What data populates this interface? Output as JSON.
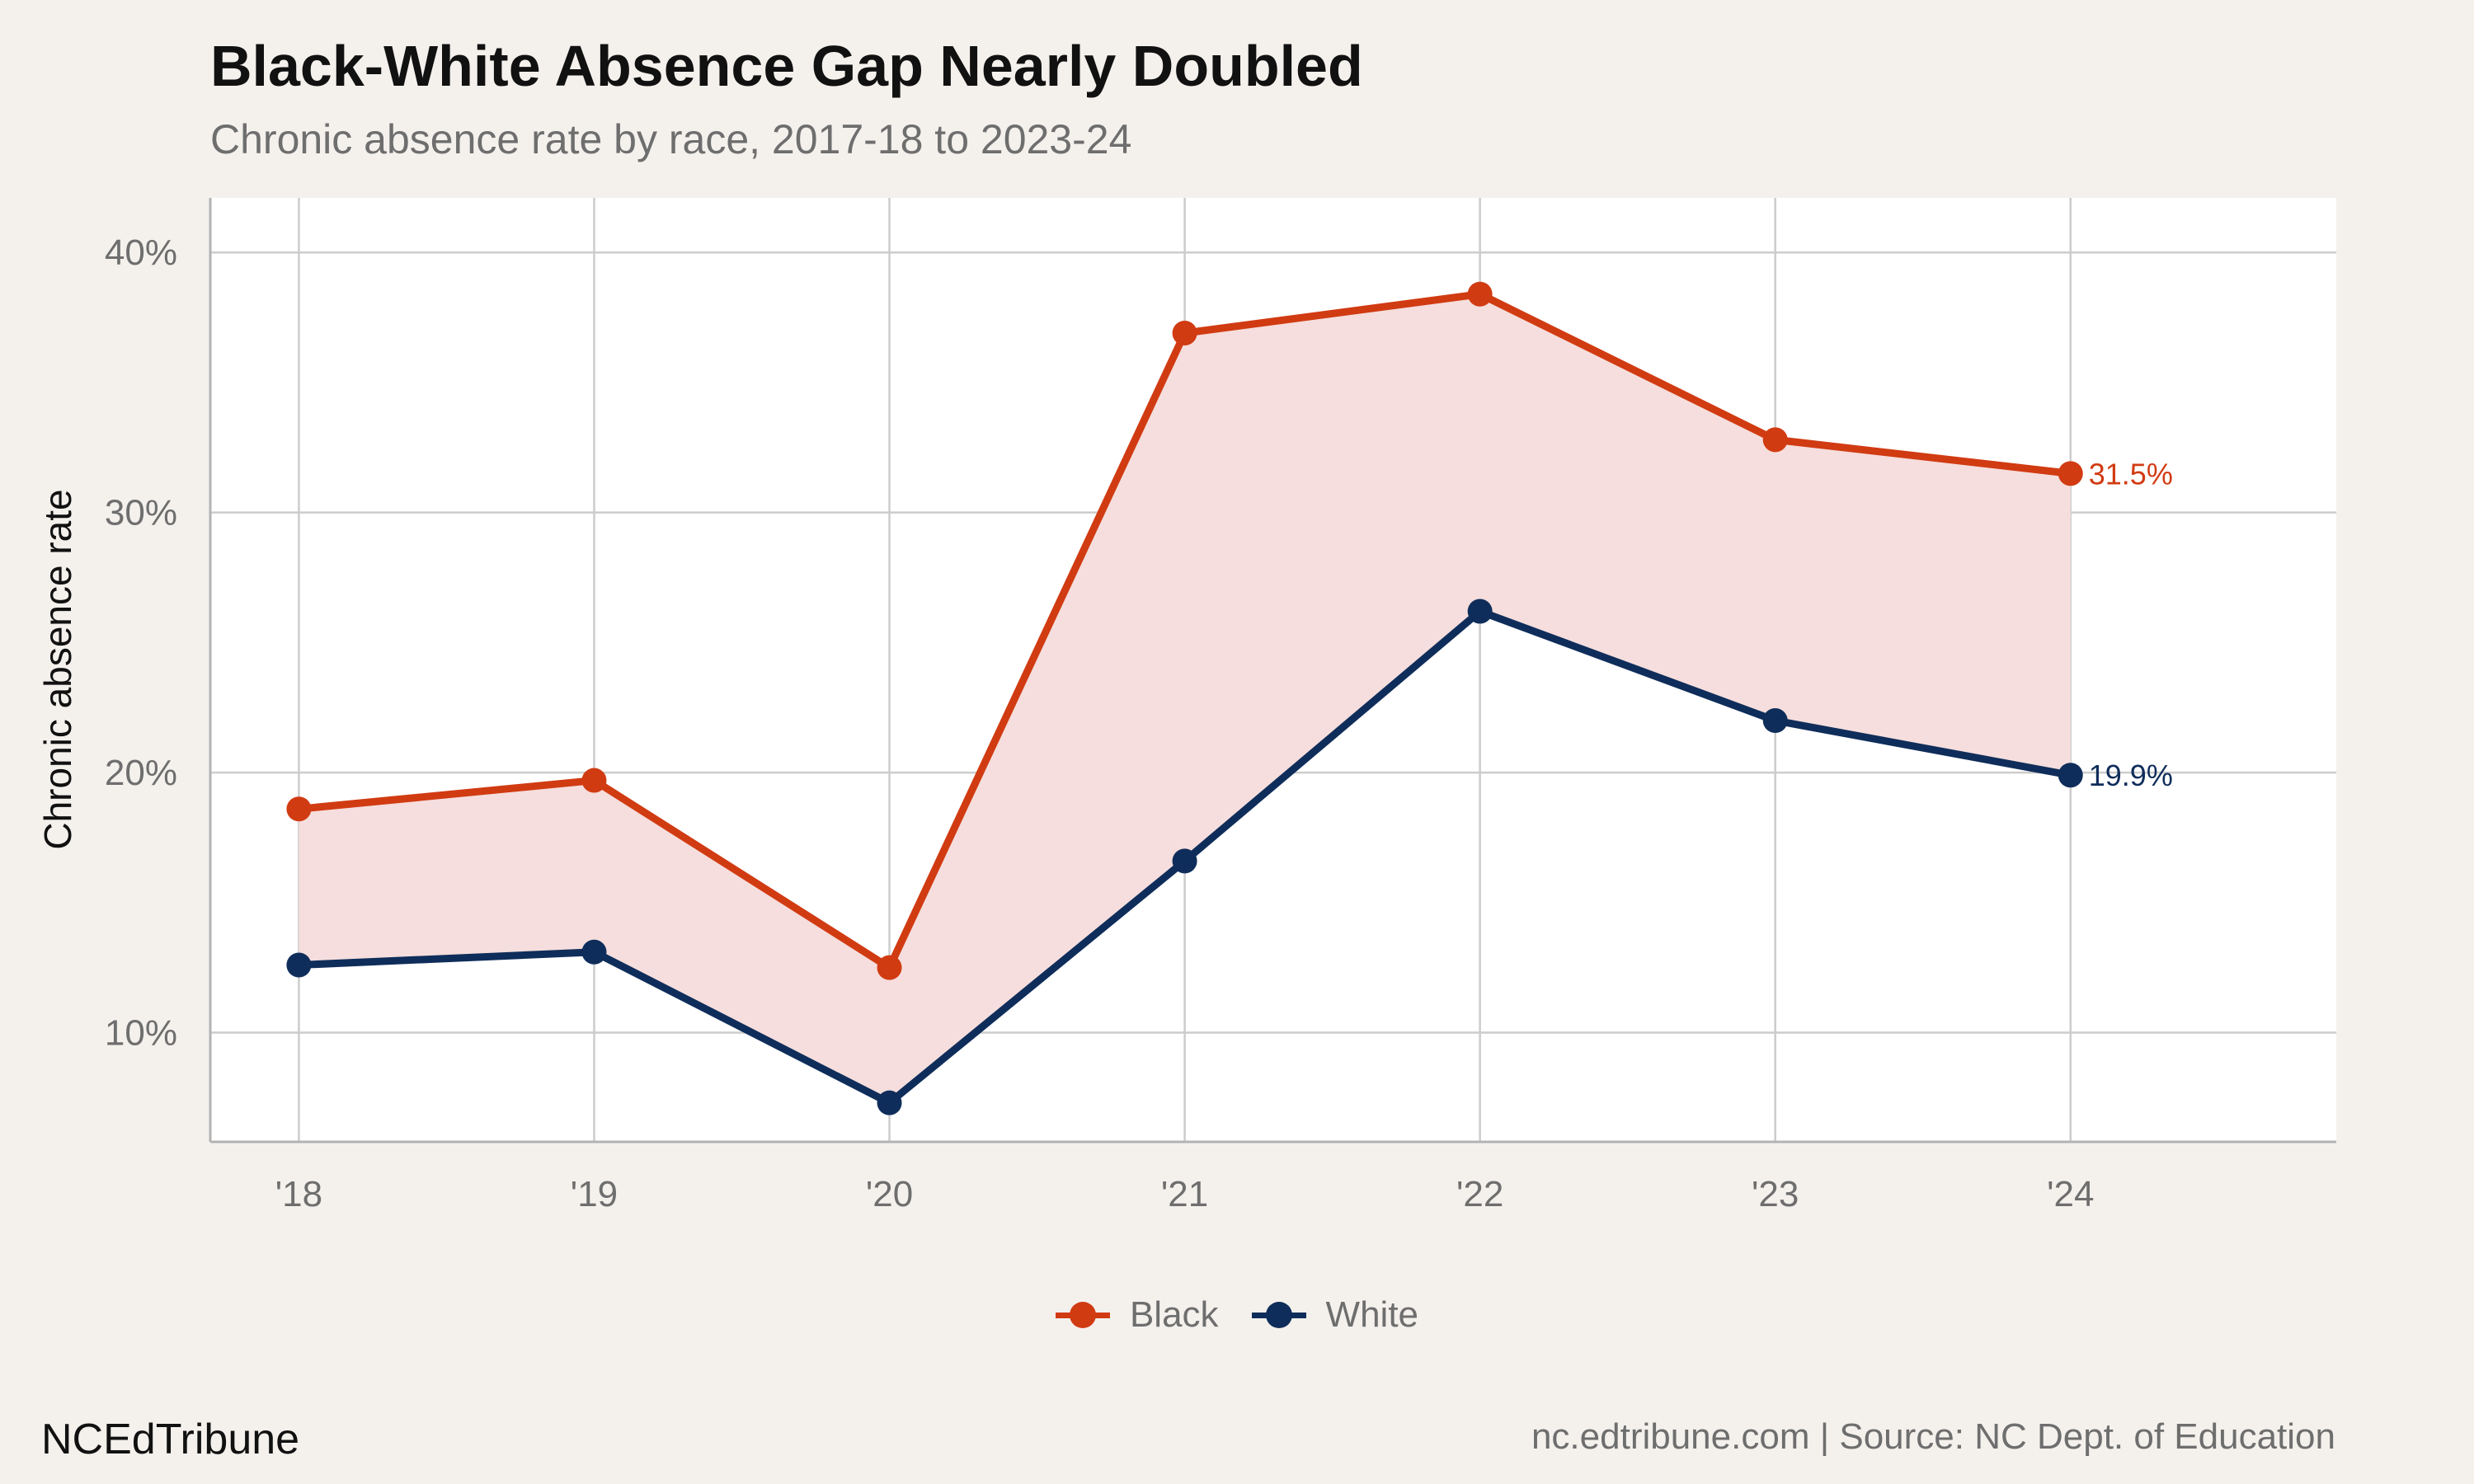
{
  "header": {
    "title": "Black-White Absence Gap Nearly Doubled",
    "subtitle": "Chronic absence rate by race, 2017-18 to 2023-24"
  },
  "footer": {
    "brand": "NCEdTribune",
    "caption": "nc.edtribune.com | Source: NC Dept. of Education"
  },
  "chart_data": {
    "type": "line",
    "title": "Black-White Absence Gap Nearly Doubled",
    "subtitle": "Chronic absence rate by race, 2017-18 to 2023-24",
    "xlabel": "",
    "ylabel": "Chronic absence rate",
    "categories": [
      "'18",
      "'19",
      "'20",
      "'21",
      "'22",
      "'23",
      "'24"
    ],
    "x": [
      2018,
      2019,
      2020,
      2021,
      2022,
      2023,
      2024
    ],
    "xlim": [
      2017.7,
      2024.9
    ],
    "ylim": [
      5.8,
      42.1
    ],
    "yticks": [
      10,
      20,
      30,
      40
    ],
    "ytick_labels": [
      "10%",
      "20%",
      "30%",
      "40%"
    ],
    "grid": true,
    "gap_fill": true,
    "legend_position": "bottom",
    "series": [
      {
        "name": "Black",
        "color": "#d13b12",
        "values": [
          18.6,
          19.7,
          12.5,
          36.9,
          38.4,
          32.8,
          31.5
        ],
        "end_label": "31.5%"
      },
      {
        "name": "White",
        "color": "#0f2d5a",
        "values": [
          12.6,
          13.1,
          7.3,
          16.6,
          26.2,
          22.0,
          19.9
        ],
        "end_label": "19.9%"
      }
    ],
    "fill_color": "#f5dedd"
  }
}
